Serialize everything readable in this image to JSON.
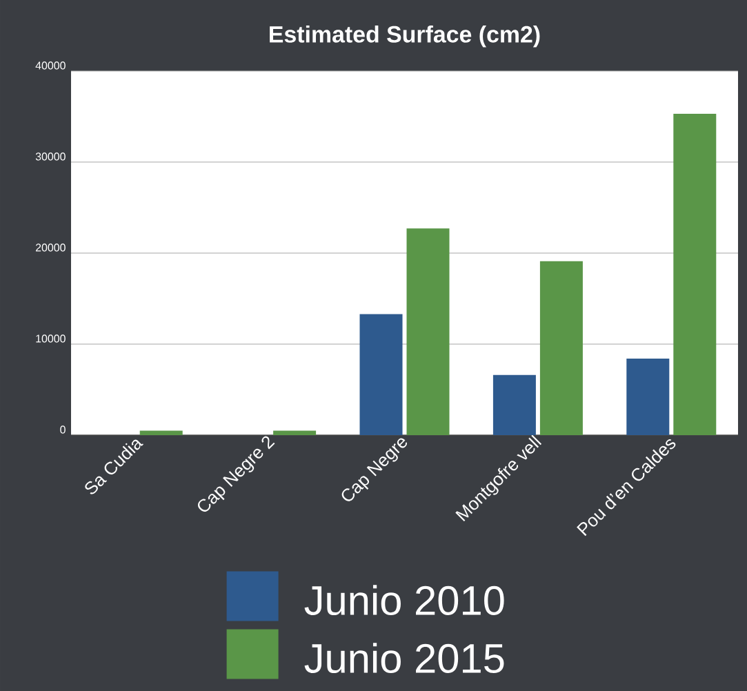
{
  "chart_data": {
    "type": "bar",
    "title": "Estimated Surface (cm2)",
    "categories": [
      "Sa Cudia",
      "Cap Negre 2",
      "Cap Negre",
      "Montgofre vell",
      "Pou d’en Caldes"
    ],
    "series": [
      {
        "name": "Junio 2010",
        "color": "#2e5a8e",
        "values": [
          0,
          0,
          13300,
          6600,
          8400
        ]
      },
      {
        "name": "Junio 2015",
        "color": "#5a9648",
        "values": [
          500,
          500,
          22700,
          19100,
          35300
        ]
      }
    ],
    "ylim": [
      0,
      40000
    ],
    "yticks": [
      0,
      10000,
      20000,
      30000,
      40000
    ],
    "grid": "y",
    "legend": "bottom"
  }
}
